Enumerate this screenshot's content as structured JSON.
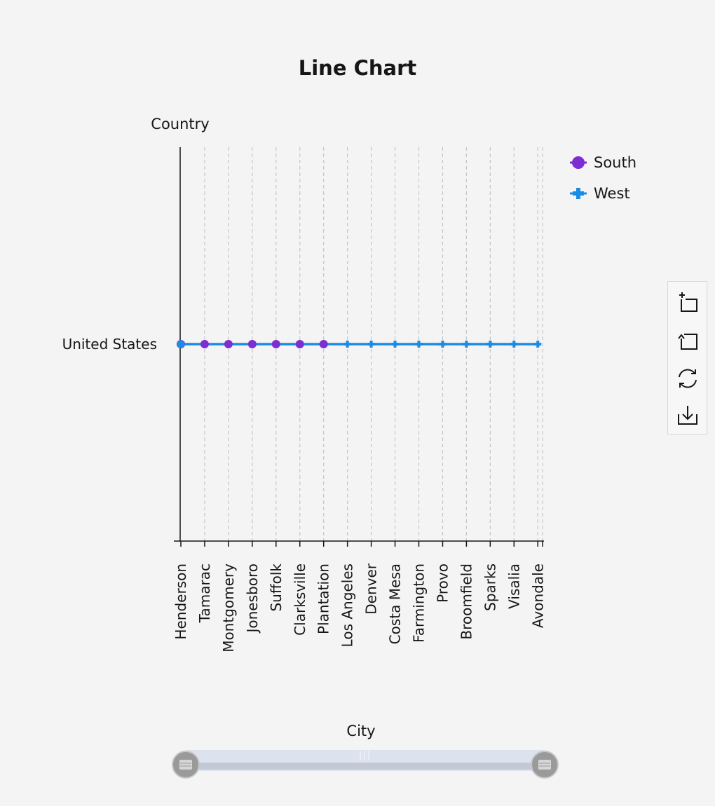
{
  "colors": {
    "south": "#7c2ed0",
    "west": "#1a8ce3",
    "axis": "#161616",
    "grid": "#c6c6c6",
    "text": "#161616"
  },
  "toolbox": {
    "icons": [
      "zoom-in-icon",
      "zoom-out-icon",
      "refresh-icon",
      "download-icon"
    ]
  },
  "slider": {
    "start": 0,
    "end": 100
  },
  "chart_data": {
    "type": "line",
    "title": "Line Chart",
    "xlabel": "City",
    "ylabel": "Country",
    "categories": [
      "Henderson",
      "Tamarac",
      "Montgomery",
      "Jonesboro",
      "Suffolk",
      "Clarksville",
      "Plantation",
      "Los Angeles",
      "Denver",
      "Costa Mesa",
      "Farmington",
      "Provo",
      "Broomfield",
      "Sparks",
      "Visalia",
      "Avondale"
    ],
    "y_categories": [
      "United States"
    ],
    "grid": true,
    "legend_position": "top-right",
    "series": [
      {
        "name": "South",
        "marker": "circle",
        "values": [
          "United States",
          "United States",
          "United States",
          "United States",
          "United States",
          "United States",
          "United States",
          null,
          null,
          null,
          null,
          null,
          null,
          null,
          null,
          null
        ]
      },
      {
        "name": "West",
        "marker": "cross",
        "values": [
          "United States",
          null,
          null,
          null,
          null,
          null,
          null,
          "United States",
          "United States",
          "United States",
          "United States",
          "United States",
          "United States",
          "United States",
          "United States",
          "United States"
        ]
      }
    ]
  }
}
